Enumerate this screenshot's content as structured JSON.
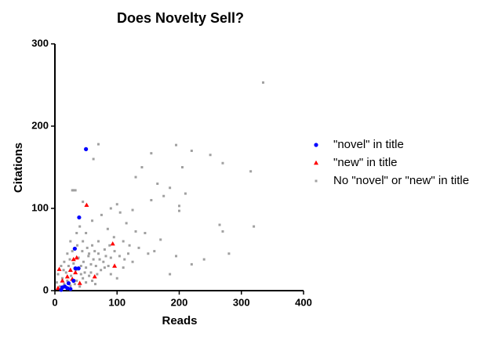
{
  "chart_data": {
    "type": "scatter",
    "title": "Does Novelty Sell?",
    "x_label": "Reads",
    "y_label": "Citations",
    "xlim": [
      0,
      400
    ],
    "xticks": [
      0,
      100,
      200,
      300,
      400
    ],
    "ylim": [
      0,
      300
    ],
    "yticks": [
      0,
      100,
      200,
      300
    ],
    "grid": false,
    "legend": "right",
    "series": [
      {
        "name": "\"novel\" in title",
        "color": "#0000ff",
        "marker": "circle",
        "x": [
          50,
          39,
          32,
          38,
          33,
          30,
          22,
          16,
          12,
          20,
          25,
          10
        ],
        "values": [
          172,
          89,
          51,
          27,
          27,
          12,
          9,
          5,
          4,
          3,
          2,
          1
        ]
      },
      {
        "name": "\"new\" in title",
        "color": "#ff0000",
        "marker": "triangle",
        "x": [
          51,
          93,
          96,
          64,
          30,
          35,
          7,
          25,
          20,
          28,
          40,
          12,
          5,
          33
        ],
        "values": [
          104,
          57,
          30,
          17,
          38,
          40,
          26,
          25,
          17,
          14,
          9,
          12,
          3,
          22
        ]
      },
      {
        "name": "No \"novel\" or \"new\" in title",
        "color": "#a0a0a0",
        "marker": "square",
        "x": [
          335,
          70,
          195,
          220,
          250,
          155,
          270,
          315,
          205,
          62,
          140,
          130,
          165,
          185,
          210,
          175,
          155,
          200,
          100,
          125,
          200,
          265,
          270,
          320,
          280,
          240,
          220,
          195,
          185,
          160,
          170,
          145,
          130,
          115,
          105,
          90,
          75,
          60,
          45,
          30,
          28,
          33,
          40,
          50,
          85,
          95,
          110,
          120,
          135,
          150,
          125,
          110,
          100,
          90,
          80,
          70,
          60,
          55,
          45,
          35,
          25,
          20,
          15,
          10,
          5,
          3,
          12,
          18,
          22,
          26,
          30,
          34,
          38,
          42,
          46,
          50,
          54,
          58,
          62,
          66,
          70,
          74,
          78,
          82,
          86,
          90,
          15,
          20,
          25,
          35,
          40,
          45,
          50,
          55,
          60,
          65,
          28,
          36,
          44,
          52,
          64,
          72,
          80,
          88,
          96,
          104,
          112,
          118,
          8,
          14,
          24,
          32,
          42,
          48,
          58,
          68
        ],
        "values": [
          253,
          178,
          177,
          170,
          165,
          167,
          155,
          145,
          150,
          160,
          150,
          138,
          130,
          125,
          118,
          115,
          110,
          103,
          105,
          98,
          97,
          80,
          72,
          78,
          45,
          38,
          32,
          42,
          20,
          48,
          62,
          70,
          72,
          82,
          95,
          100,
          92,
          85,
          108,
          122,
          122,
          122,
          78,
          70,
          75,
          65,
          60,
          55,
          52,
          45,
          35,
          28,
          15,
          40,
          50,
          60,
          55,
          45,
          60,
          70,
          60,
          45,
          35,
          30,
          20,
          10,
          15,
          22,
          30,
          18,
          33,
          25,
          40,
          20,
          35,
          28,
          42,
          22,
          38,
          30,
          45,
          25,
          35,
          42,
          30,
          20,
          8,
          12,
          6,
          12,
          5,
          15,
          10,
          18,
          12,
          8,
          48,
          55,
          48,
          52,
          48,
          38,
          28,
          55,
          48,
          42,
          38,
          45,
          5,
          25,
          38,
          8,
          30,
          22,
          32,
          20
        ]
      }
    ]
  }
}
